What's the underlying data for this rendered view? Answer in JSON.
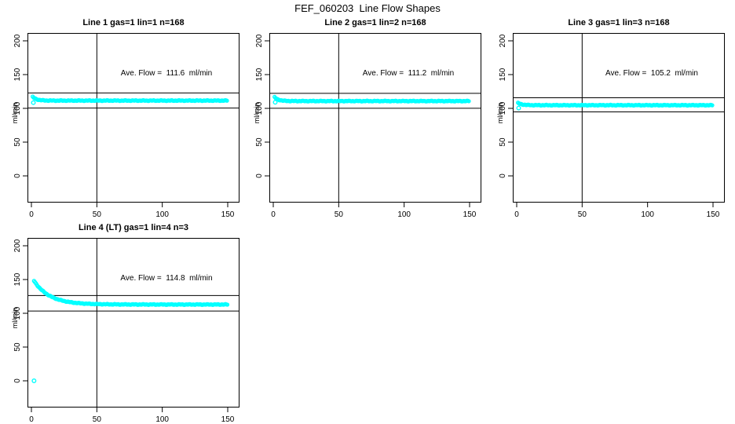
{
  "page_title": "FEF_060203  Line Flow Shapes",
  "accent_color": "#00FFFF",
  "axis_color": "#000000",
  "chart_data": [
    {
      "type": "scatter",
      "title": "Line 1 gas=1 lin=1 n=168",
      "annotation": "Ave. Flow =  111.6  ml/min",
      "ave_flow": 111.6,
      "ylabel": "ml/min",
      "xlabel": "",
      "x_ticks": [
        0,
        50,
        100,
        150
      ],
      "y_ticks": [
        0,
        50,
        100,
        150,
        200
      ],
      "xlim": [
        0,
        159
      ],
      "ylim": [
        -40,
        212
      ],
      "ref_line_upper": 122.8,
      "ref_line_lower": 100.4,
      "vline_x": 50,
      "grid": false,
      "legend": "none",
      "profile": {
        "x_start": 1,
        "x_end": 150,
        "start_y": 117,
        "settle_y": 111.5,
        "decay": 3
      },
      "outliers": [
        [
          1.5,
          108.5
        ]
      ]
    },
    {
      "type": "scatter",
      "title": "Line 2 gas=1 lin=2 n=168",
      "annotation": "Ave. Flow =  111.2  ml/min",
      "ave_flow": 111.2,
      "ylabel": "ml/min",
      "xlabel": "",
      "x_ticks": [
        0,
        50,
        100,
        150
      ],
      "y_ticks": [
        0,
        50,
        100,
        150,
        200
      ],
      "xlim": [
        0,
        159
      ],
      "ylim": [
        -40,
        212
      ],
      "ref_line_upper": 122.3,
      "ref_line_lower": 100.1,
      "vline_x": 50,
      "grid": false,
      "legend": "none",
      "profile": {
        "x_start": 1,
        "x_end": 150,
        "start_y": 116.5,
        "settle_y": 110.8,
        "decay": 3
      },
      "outliers": [
        [
          1.5,
          109
        ]
      ]
    },
    {
      "type": "scatter",
      "title": "Line 3 gas=1 lin=3 n=168",
      "annotation": "Ave. Flow =  105.2  ml/min",
      "ave_flow": 105.2,
      "ylabel": "ml/min",
      "xlabel": "",
      "x_ticks": [
        0,
        50,
        100,
        150
      ],
      "y_ticks": [
        0,
        50,
        100,
        150,
        200
      ],
      "xlim": [
        0,
        159
      ],
      "ylim": [
        -40,
        212
      ],
      "ref_line_upper": 115.7,
      "ref_line_lower": 94.7,
      "vline_x": 50,
      "grid": false,
      "legend": "none",
      "profile": {
        "x_start": 1,
        "x_end": 150,
        "start_y": 108,
        "settle_y": 104.7,
        "decay": 3
      },
      "outliers": [
        [
          1.5,
          100.5
        ]
      ]
    },
    {
      "type": "scatter",
      "title": "Line 4 (LT) gas=1 lin=4 n=3",
      "annotation": "Ave. Flow =  114.8  ml/min",
      "ave_flow": 114.8,
      "ylabel": "ml/min",
      "xlabel": "",
      "x_ticks": [
        0,
        50,
        100,
        150
      ],
      "y_ticks": [
        0,
        50,
        100,
        150,
        200
      ],
      "xlim": [
        0,
        159
      ],
      "ylim": [
        -40,
        212
      ],
      "ref_line_upper": 126.3,
      "ref_line_lower": 103.3,
      "vline_x": 50,
      "grid": false,
      "legend": "none",
      "profile": {
        "x_start": 2,
        "x_end": 150,
        "start_y": 148,
        "settle_y": 113,
        "decay": 12
      },
      "outliers": [
        [
          2,
          0
        ]
      ]
    }
  ]
}
